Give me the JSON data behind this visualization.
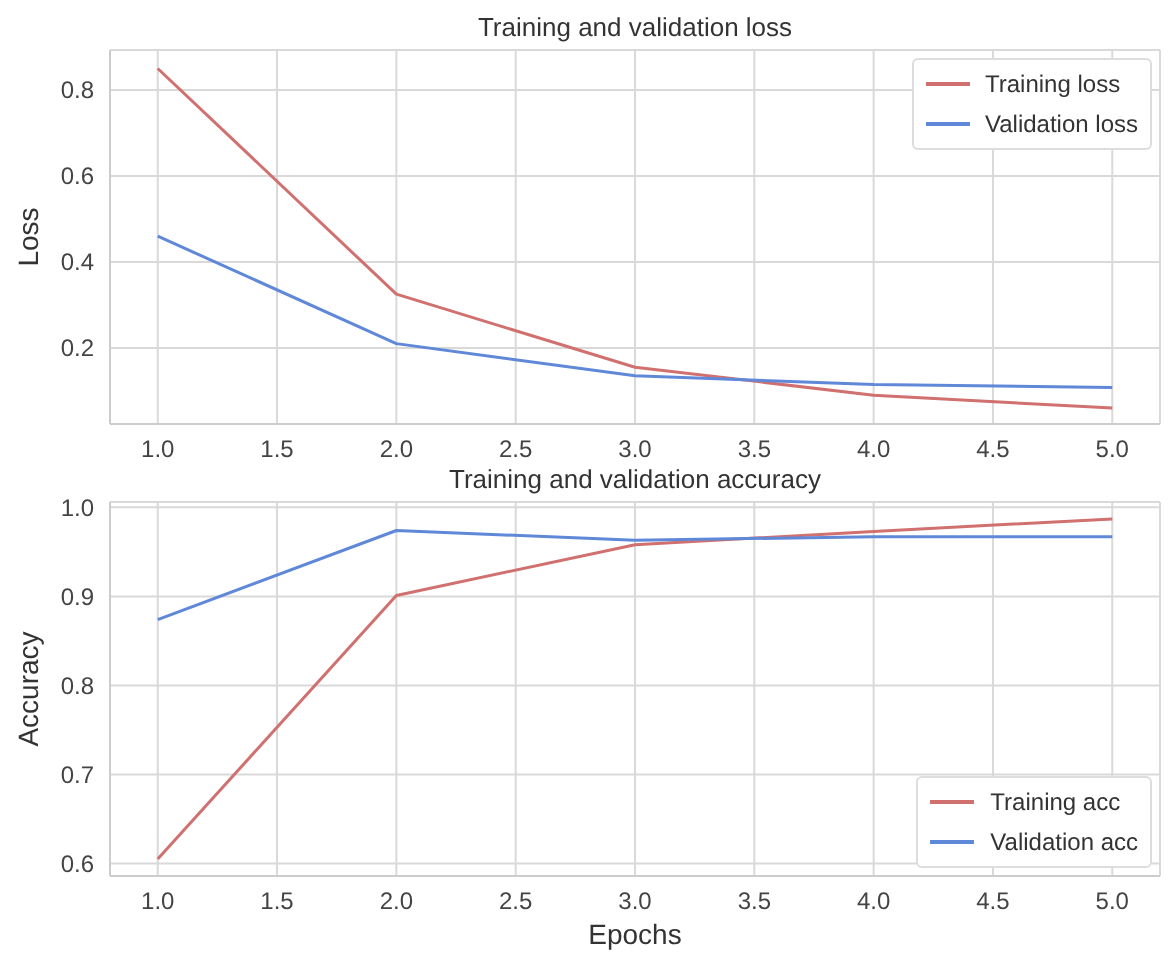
{
  "chart_data": [
    {
      "type": "line",
      "title": "Training and validation loss",
      "ylabel": "Loss",
      "x": [
        1,
        2,
        3,
        4,
        5
      ],
      "series": [
        {
          "name": "Training loss",
          "color": "#d0706f",
          "values": [
            0.85,
            0.325,
            0.155,
            0.09,
            0.06
          ]
        },
        {
          "name": "Validation loss",
          "color": "#6088d8",
          "values": [
            0.46,
            0.21,
            0.135,
            0.115,
            0.108
          ]
        }
      ],
      "xlim": [
        0.8,
        5.2
      ],
      "xticks": [
        {
          "value": 1,
          "label": "1.0"
        },
        {
          "value": 1.5,
          "label": "1.5"
        },
        {
          "value": 2,
          "label": "2.0"
        },
        {
          "value": 2.5,
          "label": "2.5"
        },
        {
          "value": 3,
          "label": "3.0"
        },
        {
          "value": 3.5,
          "label": "3.5"
        },
        {
          "value": 4,
          "label": "4.0"
        },
        {
          "value": 4.5,
          "label": "4.5"
        },
        {
          "value": 5,
          "label": "5.0"
        }
      ],
      "ylim": [
        0.023,
        0.893
      ],
      "yticks": [
        0.2,
        0.4,
        0.6,
        0.8
      ],
      "grid": true,
      "legend": "top right"
    },
    {
      "type": "line",
      "title": "Training and validation accuracy",
      "xlabel": "Epochs",
      "ylabel": "Accuracy",
      "x": [
        1,
        2,
        3,
        4,
        5
      ],
      "series": [
        {
          "name": "Training acc",
          "color": "#d0706f",
          "values": [
            0.605,
            0.901,
            0.958,
            0.973,
            0.987
          ]
        },
        {
          "name": "Validation acc",
          "color": "#6088d8",
          "values": [
            0.874,
            0.974,
            0.963,
            0.967,
            0.967
          ]
        }
      ],
      "xlim": [
        0.8,
        5.2
      ],
      "xticks": [
        {
          "value": 1,
          "label": "1.0"
        },
        {
          "value": 1.5,
          "label": "1.5"
        },
        {
          "value": 2,
          "label": "2.0"
        },
        {
          "value": 2.5,
          "label": "2.5"
        },
        {
          "value": 3,
          "label": "3.0"
        },
        {
          "value": 3.5,
          "label": "3.5"
        },
        {
          "value": 4,
          "label": "4.0"
        },
        {
          "value": 4.5,
          "label": "4.5"
        },
        {
          "value": 5,
          "label": "5.0"
        }
      ],
      "ylim": [
        0.586,
        1.006
      ],
      "yticks": [
        0.6,
        0.7,
        0.8,
        0.9,
        {
          "value": 1,
          "label": "1.0"
        }
      ],
      "grid": true,
      "legend": "bottom right"
    }
  ]
}
